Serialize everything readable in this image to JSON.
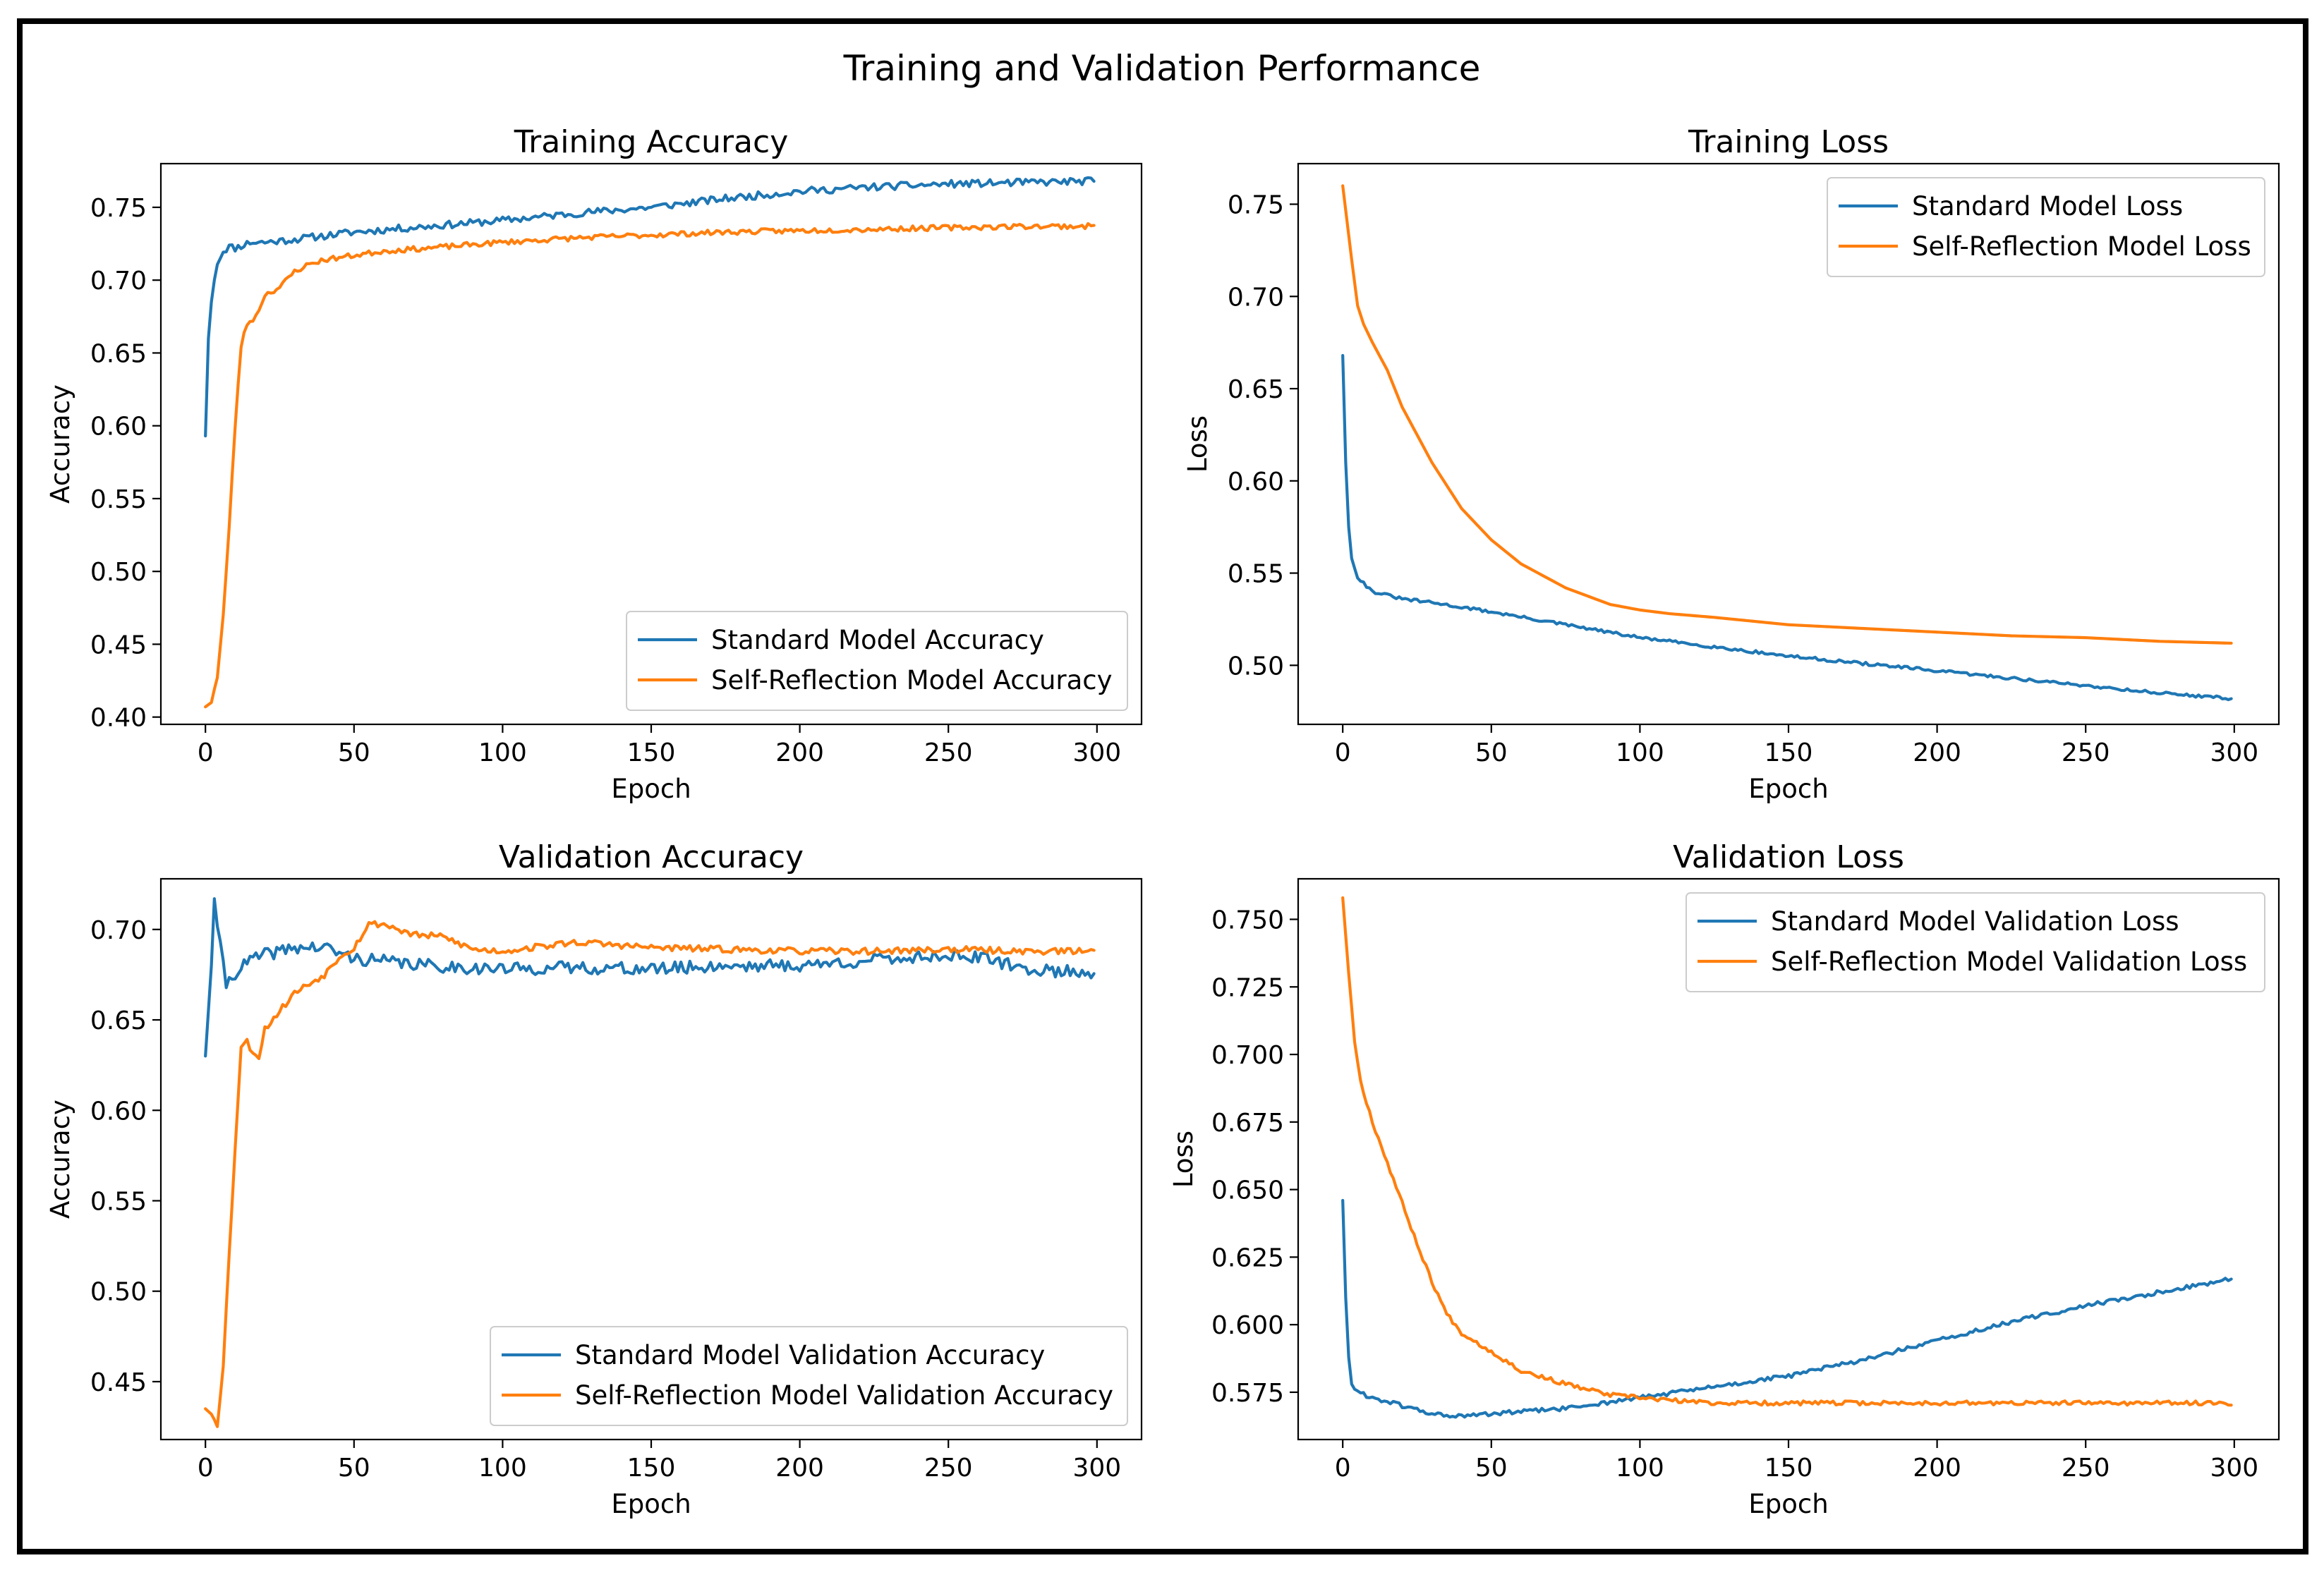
{
  "suptitle": "Training and Validation Performance",
  "colors": {
    "standard": "#1f77b4",
    "self_reflection": "#ff7f0e"
  },
  "chart_data": [
    {
      "id": "train-acc",
      "type": "line",
      "title": "Training Accuracy",
      "xlabel": "Epoch",
      "ylabel": "Accuracy",
      "xlim": [
        -15,
        315
      ],
      "ylim": [
        0.395,
        0.78
      ],
      "xticks": [
        0,
        50,
        100,
        150,
        200,
        250,
        300
      ],
      "yticks": [
        0.4,
        0.45,
        0.5,
        0.55,
        0.6,
        0.65,
        0.7,
        0.75
      ],
      "ytick_decimals": 2,
      "legend": "lower-right",
      "series": [
        {
          "name": "Standard Model Accuracy",
          "color": "#1f77b4",
          "noise": 0.0025,
          "seed": 11,
          "points": [
            [
              0,
              0.593
            ],
            [
              1,
              0.66
            ],
            [
              2,
              0.685
            ],
            [
              3,
              0.7
            ],
            [
              4,
              0.712
            ],
            [
              6,
              0.72
            ],
            [
              8,
              0.723
            ],
            [
              10,
              0.722
            ],
            [
              15,
              0.726
            ],
            [
              20,
              0.726
            ],
            [
              30,
              0.728
            ],
            [
              50,
              0.733
            ],
            [
              75,
              0.737
            ],
            [
              100,
              0.741
            ],
            [
              125,
              0.746
            ],
            [
              150,
              0.75
            ],
            [
              175,
              0.756
            ],
            [
              200,
              0.761
            ],
            [
              225,
              0.764
            ],
            [
              250,
              0.766
            ],
            [
              275,
              0.767
            ],
            [
              299,
              0.768
            ]
          ]
        },
        {
          "name": "Self-Reflection Model Accuracy",
          "color": "#ff7f0e",
          "noise": 0.0018,
          "seed": 23,
          "points": [
            [
              0,
              0.407
            ],
            [
              2,
              0.41
            ],
            [
              4,
              0.428
            ],
            [
              6,
              0.47
            ],
            [
              8,
              0.53
            ],
            [
              10,
              0.6
            ],
            [
              12,
              0.655
            ],
            [
              14,
              0.67
            ],
            [
              17,
              0.675
            ],
            [
              20,
              0.69
            ],
            [
              25,
              0.695
            ],
            [
              30,
              0.706
            ],
            [
              35,
              0.711
            ],
            [
              40,
              0.714
            ],
            [
              50,
              0.717
            ],
            [
              60,
              0.72
            ],
            [
              75,
              0.722
            ],
            [
              100,
              0.726
            ],
            [
              125,
              0.729
            ],
            [
              150,
              0.731
            ],
            [
              175,
              0.733
            ],
            [
              200,
              0.734
            ],
            [
              225,
              0.735
            ],
            [
              250,
              0.736
            ],
            [
              275,
              0.737
            ],
            [
              299,
              0.737
            ]
          ]
        }
      ]
    },
    {
      "id": "train-loss",
      "type": "line",
      "title": "Training Loss",
      "xlabel": "Epoch",
      "ylabel": "Loss",
      "xlim": [
        -15,
        315
      ],
      "ylim": [
        0.468,
        0.772
      ],
      "xticks": [
        0,
        50,
        100,
        150,
        200,
        250,
        300
      ],
      "yticks": [
        0.5,
        0.55,
        0.6,
        0.65,
        0.7,
        0.75
      ],
      "ytick_decimals": 2,
      "legend": "top-right",
      "series": [
        {
          "name": "Standard Model Loss",
          "color": "#1f77b4",
          "noise": 0.0008,
          "seed": 31,
          "points": [
            [
              0,
              0.668
            ],
            [
              1,
              0.61
            ],
            [
              2,
              0.575
            ],
            [
              3,
              0.558
            ],
            [
              5,
              0.548
            ],
            [
              8,
              0.543
            ],
            [
              10,
              0.54
            ],
            [
              15,
              0.538
            ],
            [
              20,
              0.536
            ],
            [
              30,
              0.534
            ],
            [
              50,
              0.529
            ],
            [
              75,
              0.522
            ],
            [
              100,
              0.515
            ],
            [
              125,
              0.51
            ],
            [
              150,
              0.505
            ],
            [
              175,
              0.501
            ],
            [
              200,
              0.497
            ],
            [
              225,
              0.493
            ],
            [
              250,
              0.489
            ],
            [
              275,
              0.485
            ],
            [
              299,
              0.482
            ]
          ]
        },
        {
          "name": "Self-Reflection Model Loss",
          "color": "#ff7f0e",
          "noise": 0.0,
          "seed": 37,
          "points": [
            [
              0,
              0.76
            ],
            [
              3,
              0.72
            ],
            [
              5,
              0.695
            ],
            [
              7,
              0.685
            ],
            [
              10,
              0.675
            ],
            [
              15,
              0.66
            ],
            [
              20,
              0.64
            ],
            [
              30,
              0.61
            ],
            [
              40,
              0.585
            ],
            [
              50,
              0.568
            ],
            [
              60,
              0.555
            ],
            [
              75,
              0.542
            ],
            [
              90,
              0.533
            ],
            [
              100,
              0.53
            ],
            [
              110,
              0.528
            ],
            [
              125,
              0.526
            ],
            [
              150,
              0.522
            ],
            [
              175,
              0.52
            ],
            [
              200,
              0.518
            ],
            [
              225,
              0.516
            ],
            [
              250,
              0.515
            ],
            [
              275,
              0.513
            ],
            [
              299,
              0.512
            ]
          ]
        }
      ]
    },
    {
      "id": "val-acc",
      "type": "line",
      "title": "Validation Accuracy",
      "xlabel": "Epoch",
      "ylabel": "Accuracy",
      "xlim": [
        -15,
        315
      ],
      "ylim": [
        0.418,
        0.728
      ],
      "xticks": [
        0,
        50,
        100,
        150,
        200,
        250,
        300
      ],
      "yticks": [
        0.45,
        0.5,
        0.55,
        0.6,
        0.65,
        0.7
      ],
      "ytick_decimals": 2,
      "legend": "lower-right",
      "series": [
        {
          "name": "Standard Model Validation Accuracy",
          "color": "#1f77b4",
          "noise": 0.0035,
          "seed": 41,
          "points": [
            [
              0,
              0.63
            ],
            [
              2,
              0.68
            ],
            [
              3,
              0.717
            ],
            [
              5,
              0.69
            ],
            [
              7,
              0.67
            ],
            [
              10,
              0.676
            ],
            [
              15,
              0.683
            ],
            [
              20,
              0.686
            ],
            [
              30,
              0.69
            ],
            [
              40,
              0.69
            ],
            [
              50,
              0.684
            ],
            [
              75,
              0.68
            ],
            [
              100,
              0.678
            ],
            [
              125,
              0.679
            ],
            [
              150,
              0.678
            ],
            [
              175,
              0.68
            ],
            [
              200,
              0.68
            ],
            [
              225,
              0.683
            ],
            [
              250,
              0.686
            ],
            [
              265,
              0.683
            ],
            [
              275,
              0.678
            ],
            [
              299,
              0.676
            ]
          ]
        },
        {
          "name": "Self-Reflection Model Validation Accuracy",
          "color": "#ff7f0e",
          "noise": 0.0018,
          "seed": 53,
          "points": [
            [
              0,
              0.435
            ],
            [
              2,
              0.432
            ],
            [
              4,
              0.426
            ],
            [
              6,
              0.46
            ],
            [
              8,
              0.52
            ],
            [
              10,
              0.58
            ],
            [
              12,
              0.635
            ],
            [
              14,
              0.638
            ],
            [
              16,
              0.632
            ],
            [
              18,
              0.63
            ],
            [
              20,
              0.645
            ],
            [
              25,
              0.655
            ],
            [
              30,
              0.665
            ],
            [
              40,
              0.675
            ],
            [
              45,
              0.685
            ],
            [
              50,
              0.69
            ],
            [
              55,
              0.703
            ],
            [
              60,
              0.703
            ],
            [
              70,
              0.697
            ],
            [
              80,
              0.696
            ],
            [
              90,
              0.689
            ],
            [
              100,
              0.688
            ],
            [
              125,
              0.693
            ],
            [
              150,
              0.69
            ],
            [
              175,
              0.689
            ],
            [
              200,
              0.688
            ],
            [
              225,
              0.688
            ],
            [
              250,
              0.689
            ],
            [
              275,
              0.688
            ],
            [
              299,
              0.688
            ]
          ]
        }
      ]
    },
    {
      "id": "val-loss",
      "type": "line",
      "title": "Validation Loss",
      "xlabel": "Epoch",
      "ylabel": "Loss",
      "xlim": [
        -15,
        315
      ],
      "ylim": [
        0.5575,
        0.765
      ],
      "xticks": [
        0,
        50,
        100,
        150,
        200,
        250,
        300
      ],
      "yticks": [
        0.575,
        0.6,
        0.625,
        0.65,
        0.675,
        0.7,
        0.725,
        0.75
      ],
      "ytick_decimals": 3,
      "legend": "top-right",
      "series": [
        {
          "name": "Standard Model Validation Loss",
          "color": "#1f77b4",
          "noise": 0.0008,
          "seed": 61,
          "points": [
            [
              0,
              0.646
            ],
            [
              1,
              0.61
            ],
            [
              2,
              0.588
            ],
            [
              3,
              0.578
            ],
            [
              5,
              0.575
            ],
            [
              10,
              0.573
            ],
            [
              20,
              0.57
            ],
            [
              30,
              0.567
            ],
            [
              40,
              0.566
            ],
            [
              50,
              0.567
            ],
            [
              75,
              0.569
            ],
            [
              100,
              0.573
            ],
            [
              125,
              0.577
            ],
            [
              150,
              0.581
            ],
            [
              175,
              0.587
            ],
            [
              200,
              0.594
            ],
            [
              225,
              0.601
            ],
            [
              250,
              0.607
            ],
            [
              275,
              0.612
            ],
            [
              299,
              0.617
            ]
          ]
        },
        {
          "name": "Self-Reflection Model Validation Loss",
          "color": "#ff7f0e",
          "noise": 0.0008,
          "seed": 67,
          "points": [
            [
              0,
              0.758
            ],
            [
              2,
              0.73
            ],
            [
              4,
              0.705
            ],
            [
              6,
              0.69
            ],
            [
              10,
              0.675
            ],
            [
              15,
              0.66
            ],
            [
              20,
              0.645
            ],
            [
              25,
              0.63
            ],
            [
              30,
              0.616
            ],
            [
              35,
              0.604
            ],
            [
              40,
              0.597
            ],
            [
              50,
              0.59
            ],
            [
              60,
              0.583
            ],
            [
              75,
              0.578
            ],
            [
              90,
              0.574
            ],
            [
              100,
              0.573
            ],
            [
              110,
              0.572
            ],
            [
              125,
              0.571
            ],
            [
              150,
              0.571
            ],
            [
              200,
              0.571
            ],
            [
              250,
              0.571
            ],
            [
              299,
              0.571
            ]
          ]
        }
      ]
    }
  ]
}
